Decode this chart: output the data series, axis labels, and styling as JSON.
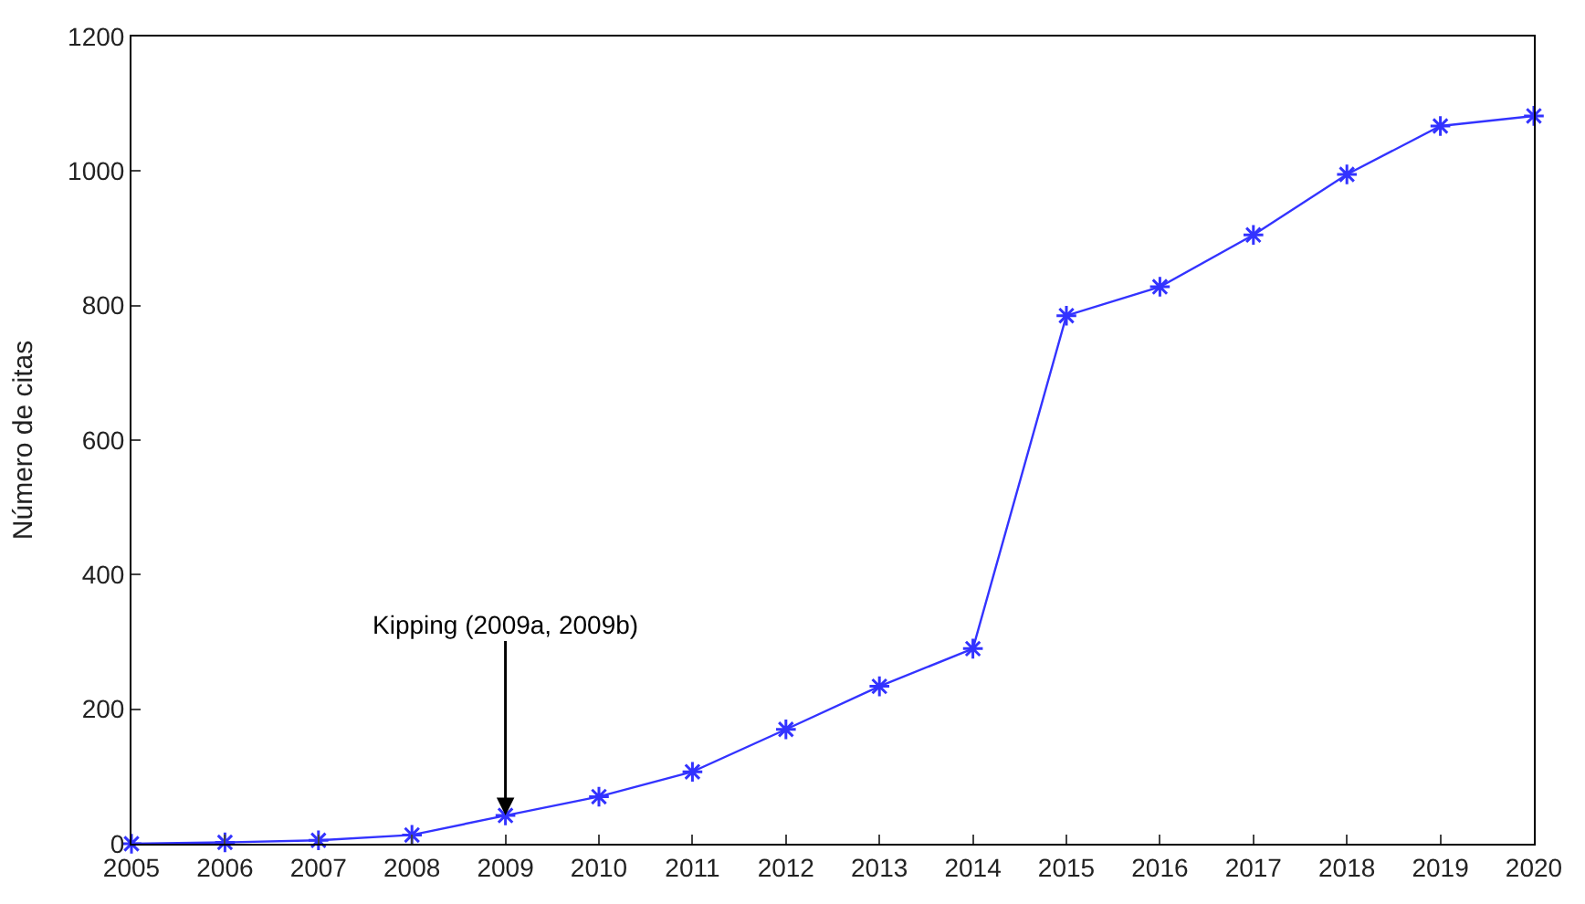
{
  "chart_data": {
    "type": "line",
    "ylabel": "Número de citas",
    "x": [
      2005,
      2006,
      2007,
      2008,
      2009,
      2010,
      2011,
      2012,
      2013,
      2014,
      2015,
      2016,
      2017,
      2018,
      2019,
      2020
    ],
    "series": [
      {
        "color": "#3333ff",
        "values": [
          0,
          2,
          5,
          13,
          42,
          70,
          107,
          170,
          234,
          290,
          785,
          828,
          905,
          995,
          1067,
          1082
        ]
      }
    ],
    "xlim": [
      2005,
      2020
    ],
    "xticks": [
      2005,
      2006,
      2007,
      2008,
      2009,
      2010,
      2011,
      2012,
      2013,
      2014,
      2015,
      2016,
      2017,
      2018,
      2019,
      2020
    ],
    "ylim": [
      0,
      1200
    ],
    "yticks": [
      0,
      200,
      400,
      600,
      800,
      1000,
      1200
    ],
    "annotations": [
      {
        "text": "Kipping (2009a, 2009b)",
        "x": 2009,
        "y": 42
      }
    ],
    "marker": "cross",
    "line_style": "solid"
  }
}
